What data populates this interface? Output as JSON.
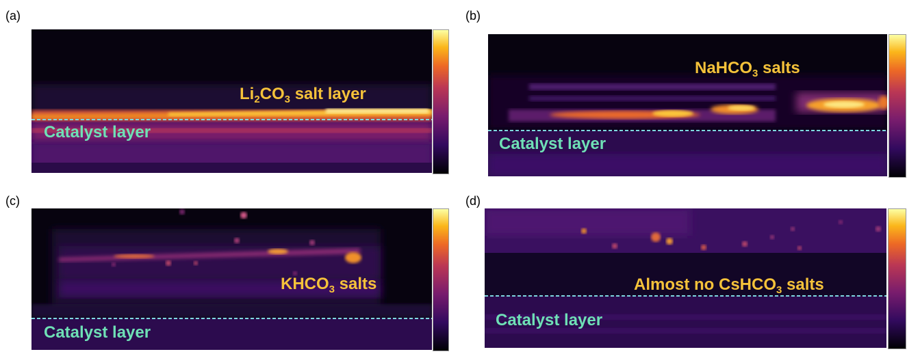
{
  "panels": [
    {
      "label": "(a)",
      "salt_text": "salt layer",
      "salt_formula_main": "Li",
      "salt_sub1": "2",
      "salt_mid": "CO",
      "salt_sub2": "3",
      "catalyst_text": "Catalyst layer"
    },
    {
      "label": "(b)",
      "salt_pre": "NaHCO",
      "salt_sub": "3",
      "salt_post": " salts",
      "catalyst_text": "Catalyst layer"
    },
    {
      "label": "(c)",
      "salt_pre": "KHCO",
      "salt_sub": "3",
      "salt_post": " salts",
      "catalyst_text": "Catalyst layer"
    },
    {
      "label": "(d)",
      "salt_pre": "Almost no CsHCO",
      "salt_sub": "3",
      "salt_post": " salts",
      "catalyst_text": "Catalyst layer"
    }
  ],
  "colors": {
    "salt_annotation": "#f5c23a",
    "catalyst_annotation": "#6fe0b6",
    "interface_line": "#7fd8e0",
    "colormap": "inferno"
  },
  "chart_data": [
    {
      "type": "heatmap",
      "panel": "a",
      "colormap": "inferno",
      "interface_dashed": true
    },
    {
      "type": "heatmap",
      "panel": "b",
      "colormap": "inferno",
      "interface_dashed": true
    },
    {
      "type": "heatmap",
      "panel": "c",
      "colormap": "inferno",
      "interface_dashed": true
    },
    {
      "type": "heatmap",
      "panel": "d",
      "colormap": "inferno",
      "interface_dashed": true
    }
  ]
}
